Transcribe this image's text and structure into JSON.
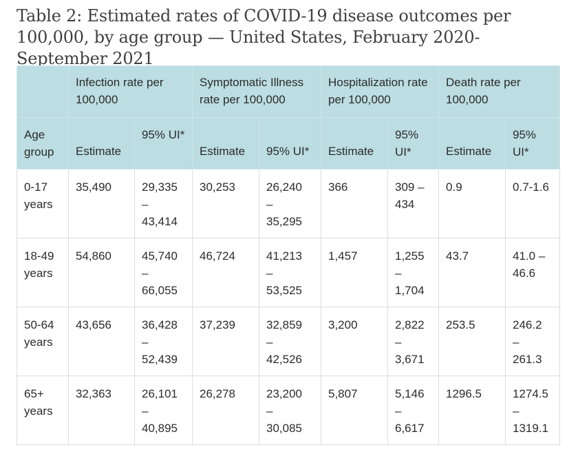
{
  "caption": "Table 2: Estimated rates of COVID-19 disease outcomes per 100,000, by age group — United States, February 2020-September 2021",
  "table": {
    "group_headers": [
      "",
      "Infection rate per 100,000",
      "Symptomatic Illness rate per 100,000",
      "Hospitalization rate per 100,000",
      "Death rate per 100,000"
    ],
    "sub_headers": [
      "Age group",
      "Estimate",
      "95% UI*",
      "Estimate",
      "95% UI*",
      "Estimate",
      "95% UI*",
      "Estimate",
      "95% UI*"
    ],
    "rows": [
      {
        "age": "0-17 years",
        "inf_est": "35,490",
        "inf_ui": [
          "29,335",
          "–",
          "43,414"
        ],
        "sym_est": "30,253",
        "sym_ui": [
          "26,240",
          "–",
          "35,295"
        ],
        "hosp_est": "366",
        "hosp_ui": [
          "309 –",
          "434"
        ],
        "death_est": "0.9",
        "death_ui": [
          "0.7-1.6"
        ]
      },
      {
        "age": "18-49 years",
        "inf_est": "54,860",
        "inf_ui": [
          "45,740",
          "–",
          "66,055"
        ],
        "sym_est": "46,724",
        "sym_ui": [
          "41,213",
          "–",
          "53,525"
        ],
        "hosp_est": "1,457",
        "hosp_ui": [
          "1,255",
          "–",
          "1,704"
        ],
        "death_est": "43.7",
        "death_ui": [
          "41.0 –",
          "46.6"
        ]
      },
      {
        "age": "50-64 years",
        "inf_est": "43,656",
        "inf_ui": [
          "36,428",
          "–",
          "52,439"
        ],
        "sym_est": "37,239",
        "sym_ui": [
          "32,859",
          "–",
          "42,526"
        ],
        "hosp_est": "3,200",
        "hosp_ui": [
          "2,822",
          "–",
          "3,671"
        ],
        "death_est": "253.5",
        "death_ui": [
          "246.2",
          "–",
          "261.3"
        ]
      },
      {
        "age": "65+ years",
        "inf_est": "32,363",
        "inf_ui": [
          "26,101",
          "–",
          "40,895"
        ],
        "sym_est": "26,278",
        "sym_ui": [
          "23,200",
          "–",
          "30,085"
        ],
        "hosp_est": "5,807",
        "hosp_ui": [
          "5,146",
          "–",
          "6,617"
        ],
        "death_est": "1296.5",
        "death_ui": [
          "1274.5",
          "–",
          "1319.1"
        ]
      }
    ]
  }
}
